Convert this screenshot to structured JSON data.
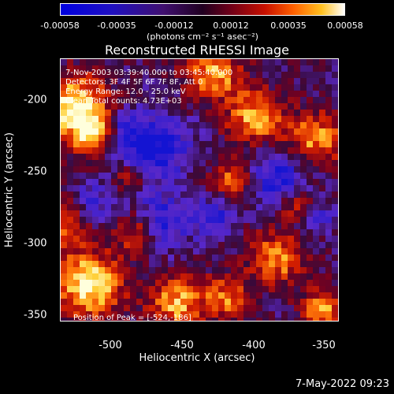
{
  "colorbar": {
    "ticks": [
      "-0.00058",
      "-0.00035",
      "-0.00012",
      "0.00012",
      "0.00035",
      "0.00058"
    ],
    "units": "(photons cm⁻² s⁻¹ asec⁻²)"
  },
  "title": "Reconstructed RHESSI Image",
  "info": {
    "line1": "7-Nov-2003 03:39:40.000 to 03:45:40.000",
    "line2": "Detectors: 3F 4F 5F 6F 7F 8F, Att 0",
    "line3": "Energy Range: 12.0 - 25.0 keV",
    "line4": "Clean    Total counts: 4.73E+03",
    "peak": "Position of Peak = [-524,-186]"
  },
  "axes": {
    "xlabel": "Heliocentric X (arcsec)",
    "ylabel": "Heliocentric Y (arcsec)",
    "xticks": [
      "-500",
      "-450",
      "-400",
      "-350"
    ],
    "yticks": [
      "-200",
      "-250",
      "-300",
      "-350"
    ]
  },
  "timestamp": "7-May-2022 09:23",
  "colors": {
    "map_low": "#1b1bd0",
    "map_mid": "#3a0a4a",
    "map_high": "#ffe060"
  }
}
